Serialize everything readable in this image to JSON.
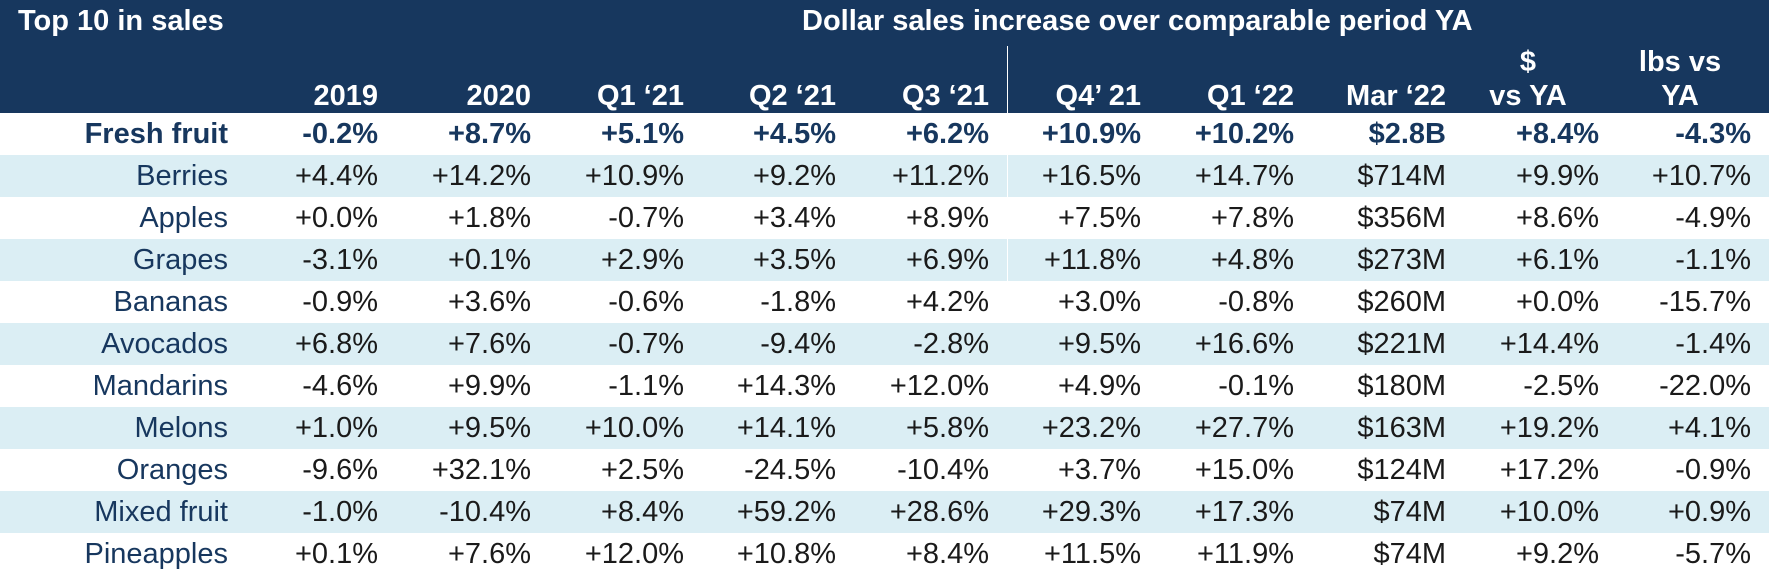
{
  "colors": {
    "header_bg": "#17375e",
    "header_text": "#ffffff",
    "band_light": "#dbeef4",
    "band_white": "#ffffff",
    "label_text": "#17375e",
    "value_text": "#1a1a1a"
  },
  "header": {
    "corner_title": "Top 10 in sales",
    "group_title": "Dollar sales increase over comparable period YA"
  },
  "chart_data": {
    "type": "table",
    "title": "Top 10 in sales",
    "subtitle": "Dollar sales increase over comparable period YA",
    "columns": [
      {
        "key": "y2019",
        "label": "2019"
      },
      {
        "key": "y2020",
        "label": "2020"
      },
      {
        "key": "q1_21",
        "label": "Q1 ‘21"
      },
      {
        "key": "q2_21",
        "label": "Q2 ‘21"
      },
      {
        "key": "q3_21",
        "label": "Q3 ‘21"
      },
      {
        "key": "q4_21",
        "label": "Q4’ 21"
      },
      {
        "key": "q1_22",
        "label": "Q1 ‘22"
      },
      {
        "key": "mar_22",
        "label": "Mar ‘22"
      },
      {
        "key": "dollar_vs_ya",
        "label_line1": "$",
        "label_line2": "vs YA"
      },
      {
        "key": "lbs_vs_ya",
        "label_line1": "lbs vs",
        "label_line2": "YA"
      }
    ],
    "rows": [
      {
        "label": "Fresh fruit",
        "total": true,
        "values": [
          "-0.2%",
          "+8.7%",
          "+5.1%",
          "+4.5%",
          "+6.2%",
          "+10.9%",
          "+10.2%",
          "$2.8B",
          "+8.4%",
          "-4.3%"
        ]
      },
      {
        "label": "Berries",
        "values": [
          "+4.4%",
          "+14.2%",
          "+10.9%",
          "+9.2%",
          "+11.2%",
          "+16.5%",
          "+14.7%",
          "$714M",
          "+9.9%",
          "+10.7%"
        ]
      },
      {
        "label": "Apples",
        "values": [
          "+0.0%",
          "+1.8%",
          "-0.7%",
          "+3.4%",
          "+8.9%",
          "+7.5%",
          "+7.8%",
          "$356M",
          "+8.6%",
          "-4.9%"
        ]
      },
      {
        "label": "Grapes",
        "values": [
          "-3.1%",
          "+0.1%",
          "+2.9%",
          "+3.5%",
          "+6.9%",
          "+11.8%",
          "+4.8%",
          "$273M",
          "+6.1%",
          "-1.1%"
        ]
      },
      {
        "label": "Bananas",
        "values": [
          "-0.9%",
          "+3.6%",
          "-0.6%",
          "-1.8%",
          "+4.2%",
          "+3.0%",
          "-0.8%",
          "$260M",
          "+0.0%",
          "-15.7%"
        ]
      },
      {
        "label": "Avocados",
        "values": [
          "+6.8%",
          "+7.6%",
          "-0.7%",
          "-9.4%",
          "-2.8%",
          "+9.5%",
          "+16.6%",
          "$221M",
          "+14.4%",
          "-1.4%"
        ]
      },
      {
        "label": "Mandarins",
        "values": [
          "-4.6%",
          "+9.9%",
          "-1.1%",
          "+14.3%",
          "+12.0%",
          "+4.9%",
          "-0.1%",
          "$180M",
          "-2.5%",
          "-22.0%"
        ]
      },
      {
        "label": "Melons",
        "values": [
          "+1.0%",
          "+9.5%",
          "+10.0%",
          "+14.1%",
          "+5.8%",
          "+23.2%",
          "+27.7%",
          "$163M",
          "+19.2%",
          "+4.1%"
        ]
      },
      {
        "label": "Oranges",
        "values": [
          "-9.6%",
          "+32.1%",
          "+2.5%",
          "-24.5%",
          "-10.4%",
          "+3.7%",
          "+15.0%",
          "$124M",
          "+17.2%",
          "-0.9%"
        ]
      },
      {
        "label": "Mixed fruit",
        "values": [
          "-1.0%",
          "-10.4%",
          "+8.4%",
          "+59.2%",
          "+28.6%",
          "+29.3%",
          "+17.3%",
          "$74M",
          "+10.0%",
          "+0.9%"
        ]
      },
      {
        "label": "Pineapples",
        "values": [
          "+0.1%",
          "+7.6%",
          "+12.0%",
          "+10.8%",
          "+8.4%",
          "+11.5%",
          "+11.9%",
          "$74M",
          "+9.2%",
          "-5.7%"
        ]
      }
    ]
  }
}
